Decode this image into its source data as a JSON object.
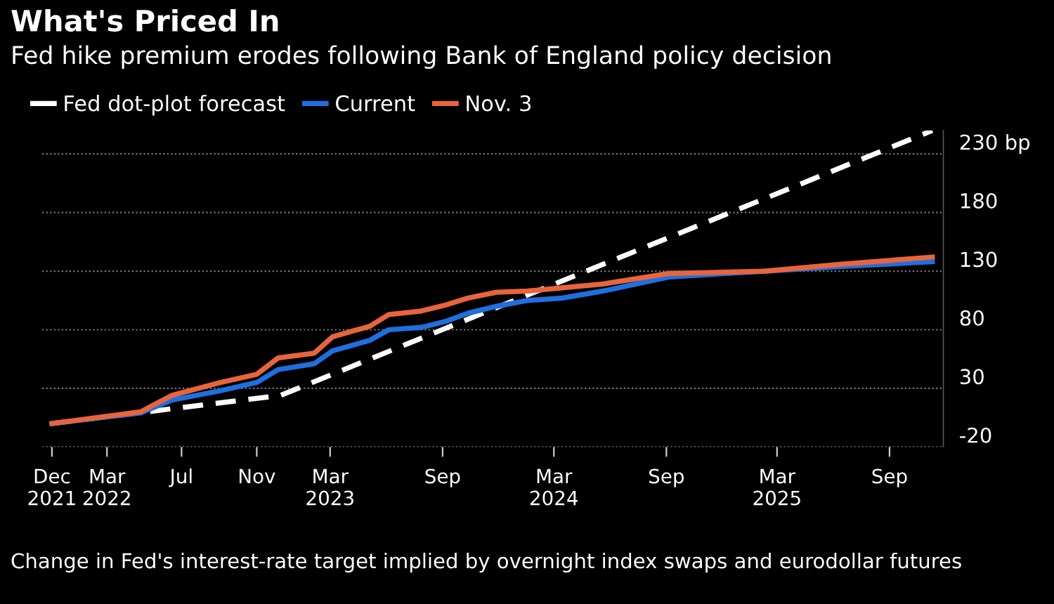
{
  "chart_data": {
    "type": "line",
    "title": "What's Priced In",
    "subtitle": "Fed hike premium erodes following Bank of England policy decision",
    "annotations": [
      "Change in Fed's interest-rate target implied by overnight index swaps and eurodollar futures"
    ],
    "series": [
      {
        "name": "Fed dot-plot forecast",
        "color": "#ffffff",
        "line_style": "dashed",
        "x": [
          "2021-12-01",
          "2022-12-10",
          "2025-11-10"
        ],
        "values": [
          0,
          24,
          250
        ]
      },
      {
        "name": "Current",
        "color": "#1f6fe0",
        "line_style": "solid",
        "x": [
          "2021-12-01",
          "2022-04-25",
          "2022-06-15",
          "2022-09-03",
          "2022-11-01",
          "2022-12-06",
          "2023-02-03",
          "2023-03-05",
          "2023-05-05",
          "2023-06-05",
          "2023-07-28",
          "2023-09-05",
          "2023-10-12",
          "2023-11-28",
          "2024-01-18",
          "2024-03-15",
          "2024-05-20",
          "2024-09-05",
          "2025-02-09",
          "2025-06-15",
          "2025-11-10"
        ],
        "values": [
          0,
          9,
          20,
          28,
          35,
          46,
          51,
          62,
          71,
          80,
          82,
          87,
          94,
          100,
          105,
          107,
          113,
          125,
          130,
          134,
          138
        ]
      },
      {
        "name": "Nov. 3",
        "color": "#e8643c",
        "line_style": "solid",
        "x": [
          "2021-12-01",
          "2022-04-25",
          "2022-06-15",
          "2022-09-03",
          "2022-11-01",
          "2022-12-06",
          "2023-02-03",
          "2023-03-05",
          "2023-05-05",
          "2023-06-05",
          "2023-07-28",
          "2023-09-05",
          "2023-10-12",
          "2023-11-28",
          "2024-01-18",
          "2024-05-20",
          "2024-09-05",
          "2025-02-09",
          "2025-06-15",
          "2025-11-10"
        ],
        "values": [
          0,
          10,
          24,
          35,
          42,
          56,
          60,
          74,
          83,
          93,
          96,
          101,
          107,
          112,
          113,
          119,
          128,
          130,
          136,
          142
        ]
      }
    ],
    "xlim": [
      "2021-11-15",
      "2025-11-28"
    ],
    "xticks": [
      {
        "value": "2021-12-01",
        "label": "Dec\n2021"
      },
      {
        "value": "2022-03-01",
        "label": "Mar\n2022"
      },
      {
        "value": "2022-07-01",
        "label": "Jul"
      },
      {
        "value": "2022-11-01",
        "label": "Nov"
      },
      {
        "value": "2023-03-01",
        "label": "Mar\n2023"
      },
      {
        "value": "2023-09-01",
        "label": "Sep"
      },
      {
        "value": "2024-03-01",
        "label": "Mar\n2024"
      },
      {
        "value": "2024-09-01",
        "label": "Sep"
      },
      {
        "value": "2025-03-01",
        "label": "Mar\n2025"
      },
      {
        "value": "2025-09-01",
        "label": "Sep"
      }
    ],
    "ylim": [
      -20,
      250
    ],
    "yticks": [
      -20,
      30,
      80,
      130,
      180,
      {
        "value": 230,
        "label": "230 bp"
      }
    ],
    "grid": "y",
    "legend": "top left"
  }
}
